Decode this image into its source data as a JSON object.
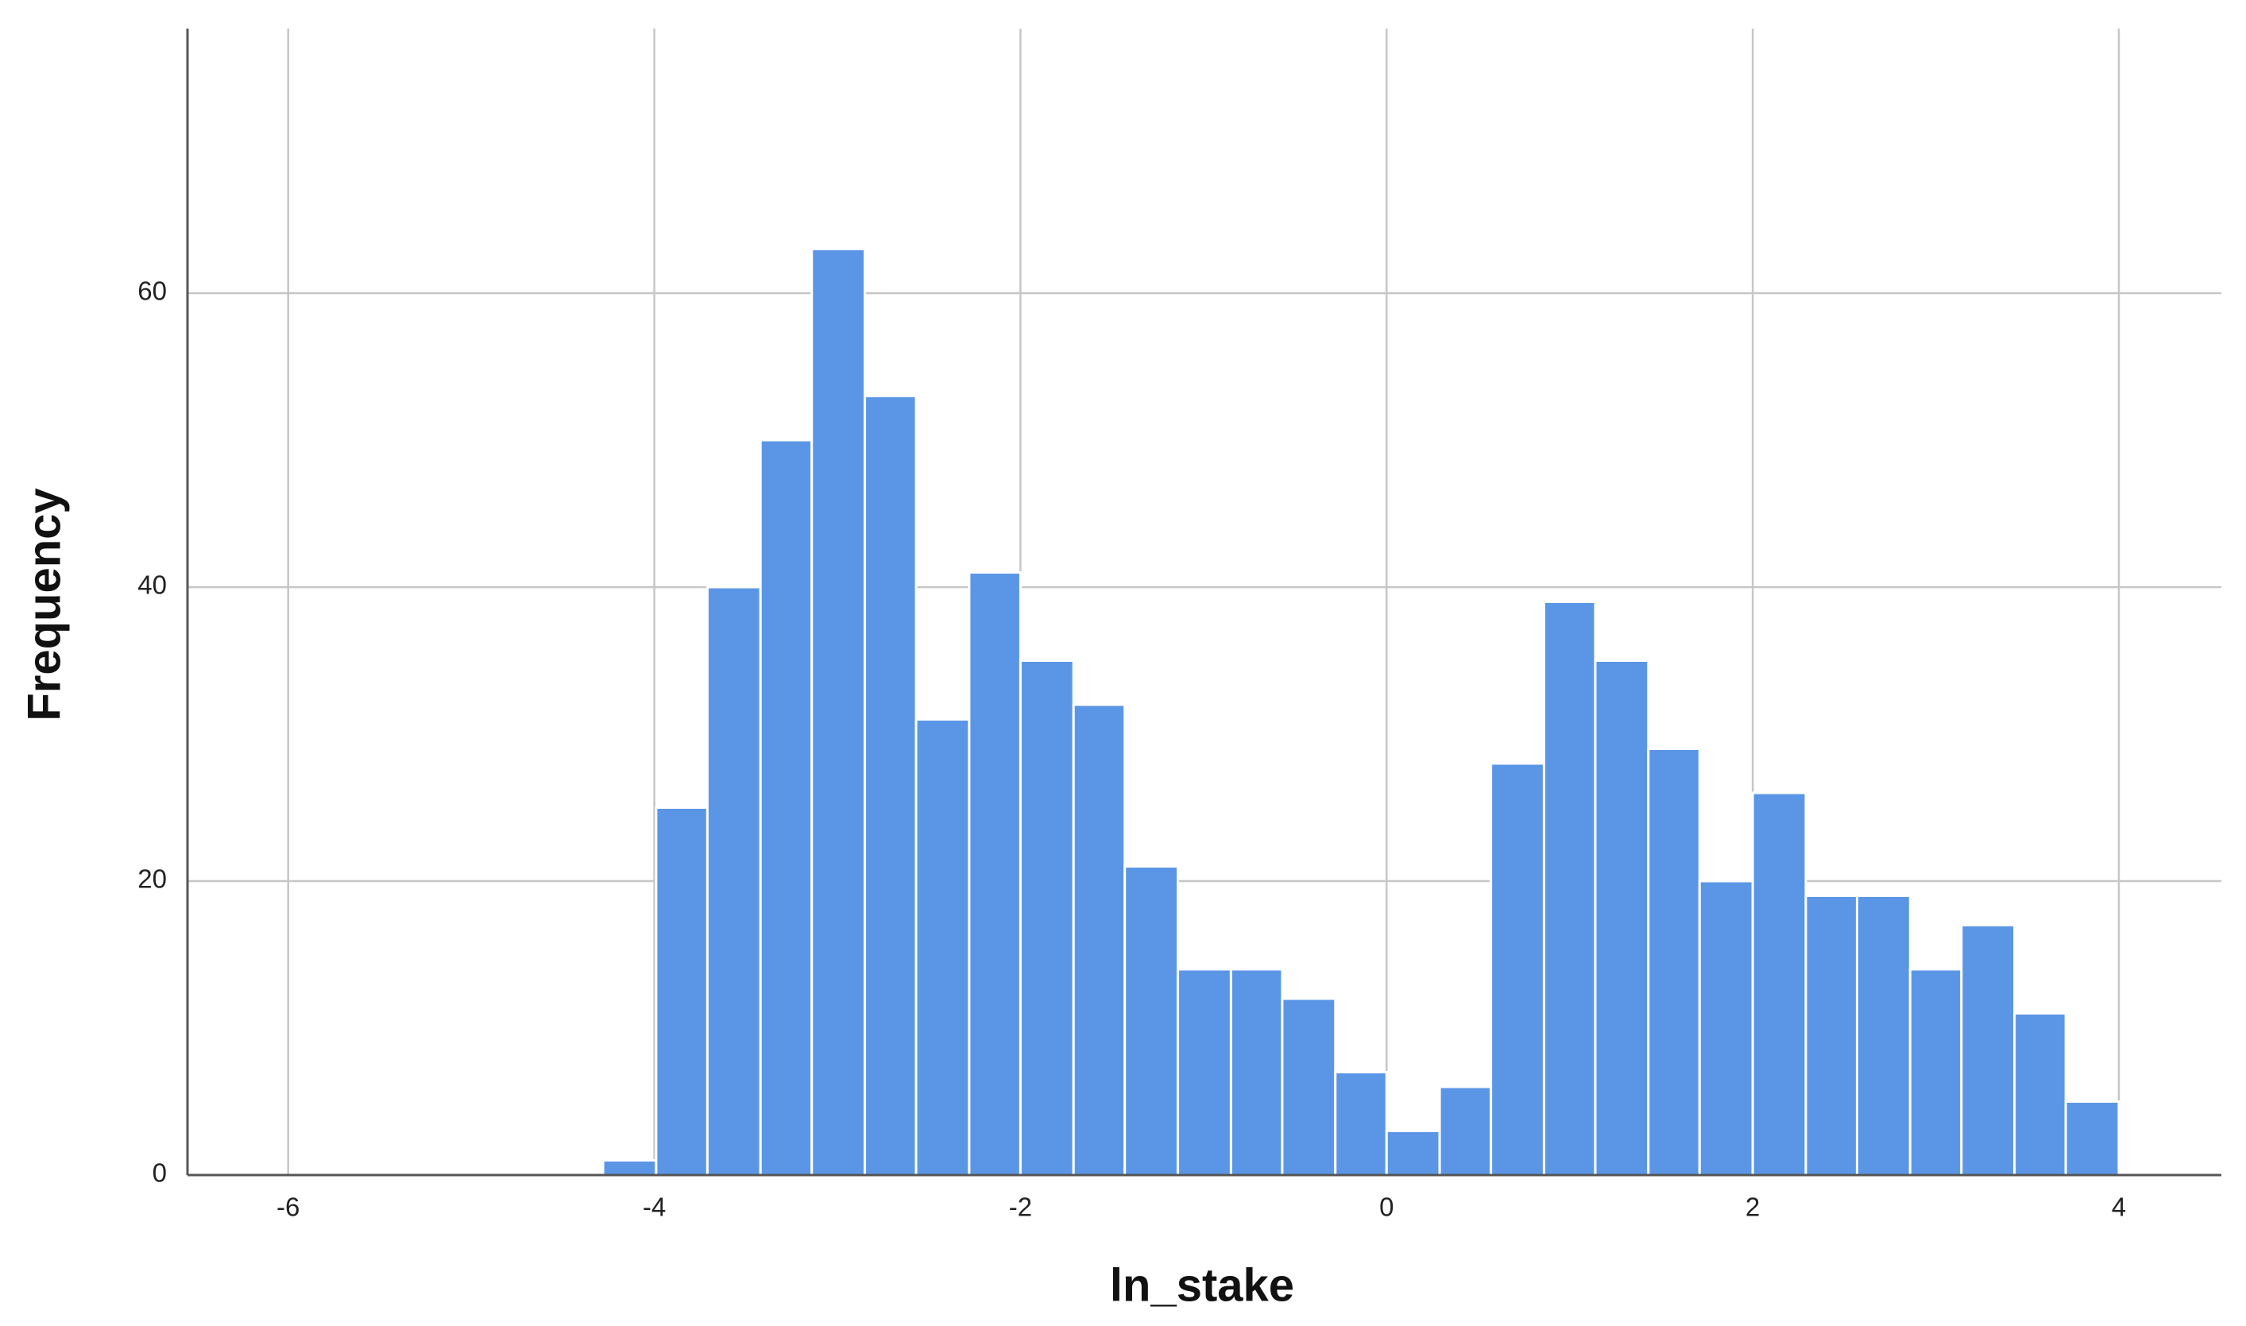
{
  "chart_data": {
    "type": "histogram",
    "x_label": "ln_stake",
    "y_label": "Frequency",
    "bins": [
      -4.28,
      -3.99,
      -3.71,
      -3.42,
      -3.14,
      -2.85,
      -2.57,
      -2.28,
      -2.0,
      -1.71,
      -1.43,
      -1.14,
      -0.85,
      -0.57,
      -0.28,
      0.0,
      0.29,
      0.57,
      0.86,
      1.14,
      1.43,
      1.71,
      2.0,
      2.29,
      2.57,
      2.86,
      3.14,
      3.43,
      3.71,
      4.0
    ],
    "values": [
      1,
      25,
      40,
      50,
      63,
      53,
      31,
      41,
      35,
      32,
      21,
      14,
      14,
      12,
      7,
      3,
      6,
      28,
      39,
      35,
      29,
      20,
      26,
      19,
      19,
      14,
      17,
      11,
      5
    ],
    "color": "#5b96e6",
    "xlim": [
      -6.55,
      4.56
    ],
    "xticks": [
      -6,
      -4,
      -2,
      0,
      2,
      4
    ],
    "ylim": [
      0,
      78
    ],
    "yticks": [
      0,
      20,
      40,
      60
    ],
    "grid": true
  }
}
